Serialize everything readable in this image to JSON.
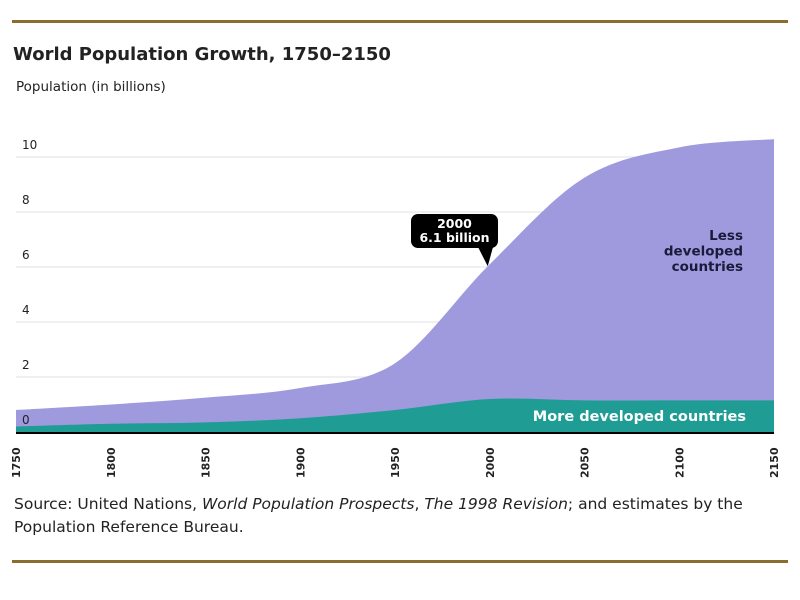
{
  "colors": {
    "less_developed": "#9f9ade",
    "more_developed": "#1f9d94",
    "baseline": "#000000",
    "grid": "#e2e2e2",
    "rule": "#8a6e2f",
    "text": "#222222",
    "callout_bg": "#000000",
    "callout_text": "#ffffff"
  },
  "chart_data": {
    "type": "area",
    "title": "World Population Growth, 1750–2150",
    "ylabel": "Population (in billions)",
    "xlabel": "",
    "xlim": [
      1750,
      2150
    ],
    "ylim": [
      0,
      11
    ],
    "grid": true,
    "stacked": true,
    "y_ticks": [
      0,
      2,
      4,
      6,
      8,
      10
    ],
    "x_ticks": [
      1750,
      1800,
      1850,
      1900,
      1950,
      2000,
      2050,
      2100,
      2150
    ],
    "series": [
      {
        "name": "More developed countries",
        "color_key": "more_developed",
        "points": [
          [
            1750,
            0.2
          ],
          [
            1800,
            0.3
          ],
          [
            1850,
            0.35
          ],
          [
            1900,
            0.5
          ],
          [
            1950,
            0.8
          ],
          [
            2000,
            1.2
          ],
          [
            2050,
            1.15
          ],
          [
            2100,
            1.15
          ],
          [
            2150,
            1.15
          ]
        ]
      },
      {
        "name": "Less developed countries",
        "color_key": "less_developed",
        "points": [
          [
            1750,
            0.6
          ],
          [
            1800,
            0.7
          ],
          [
            1850,
            0.9
          ],
          [
            1900,
            1.1
          ],
          [
            1950,
            1.7
          ],
          [
            2000,
            4.9
          ],
          [
            2050,
            8.1
          ],
          [
            2100,
            9.2
          ],
          [
            2150,
            9.5
          ]
        ]
      }
    ],
    "series_labels": {
      "less_developed": [
        "Less",
        "developed",
        "countries"
      ],
      "more_developed": "More developed countries"
    },
    "callout": {
      "year": 2000,
      "value": 6.1,
      "lines": [
        "2000",
        "6.1 billion"
      ]
    }
  },
  "source": {
    "prefix": "Source: United Nations, ",
    "publication": "World Population Prospects",
    "sep": ", ",
    "revision": "The 1998 Revision",
    "suffix": "; and estimates by the Population Reference Bureau."
  }
}
